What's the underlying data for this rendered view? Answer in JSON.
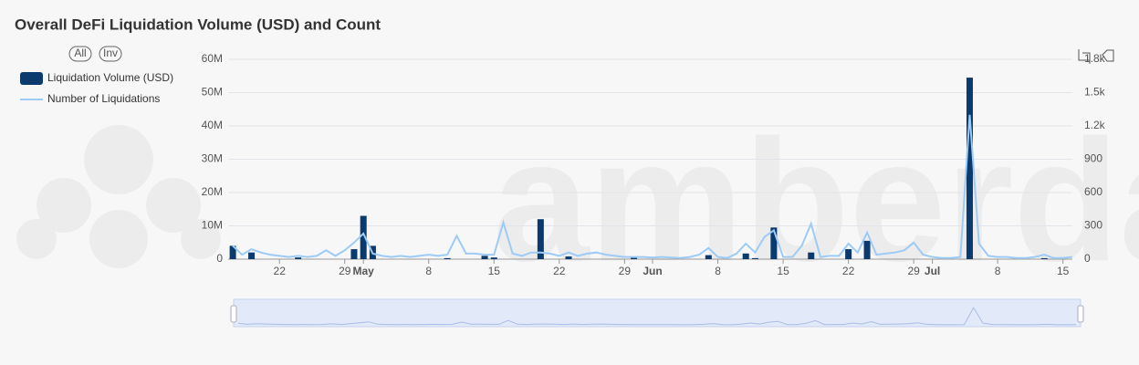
{
  "chart_data": {
    "type": "bar-line",
    "title": "Overall DeFi Liquidation Volume (USD) and Count",
    "watermark": "amberdata",
    "buttons": [
      "All",
      "Inv"
    ],
    "categories": [
      null,
      null,
      null,
      null,
      null,
      "22",
      null,
      null,
      null,
      null,
      null,
      null,
      "29",
      null,
      "May",
      null,
      null,
      null,
      null,
      null,
      null,
      "8",
      null,
      null,
      null,
      null,
      null,
      null,
      "15",
      null,
      null,
      null,
      null,
      null,
      null,
      "22",
      null,
      null,
      null,
      null,
      null,
      null,
      "29",
      null,
      null,
      "Jun",
      null,
      null,
      null,
      null,
      null,
      null,
      "8",
      null,
      null,
      null,
      null,
      null,
      null,
      "15",
      null,
      null,
      null,
      null,
      null,
      null,
      "22",
      null,
      null,
      null,
      null,
      null,
      null,
      "29",
      null,
      "Jul",
      null,
      null,
      null,
      null,
      null,
      null,
      "8",
      null,
      null,
      null,
      null,
      null,
      null,
      "15",
      null
    ],
    "series": [
      {
        "name": "Liquidation Volume (USD)",
        "color": "#0b3a6e",
        "kind": "bar",
        "values": [
          4000000,
          0,
          2000000,
          0,
          0,
          0,
          0,
          500000,
          0,
          0,
          0,
          0,
          0,
          3000000,
          13000000,
          4000000,
          0,
          0,
          0,
          0,
          0,
          0,
          0,
          300000,
          0,
          0,
          0,
          1000000,
          500000,
          0,
          0,
          0,
          0,
          12000000,
          0,
          0,
          800000,
          0,
          0,
          0,
          0,
          0,
          0,
          500000,
          0,
          0,
          0,
          0,
          0,
          0,
          0,
          1200000,
          0,
          0,
          0,
          1700000,
          300000,
          0,
          9500000,
          0,
          0,
          0,
          2000000,
          0,
          0,
          0,
          3000000,
          0,
          5500000,
          0,
          0,
          0,
          0,
          0,
          0,
          0,
          0,
          0,
          0,
          54500000,
          0,
          0,
          0,
          0,
          0,
          0,
          0,
          300000,
          0,
          0,
          0
        ]
      },
      {
        "name": "Number of Liquidations",
        "color": "#9ecbf5",
        "kind": "line",
        "axis": "y2",
        "values": [
          120,
          40,
          90,
          60,
          40,
          30,
          20,
          30,
          20,
          30,
          80,
          30,
          80,
          150,
          230,
          50,
          30,
          20,
          30,
          20,
          30,
          40,
          30,
          40,
          210,
          50,
          50,
          40,
          40,
          330,
          50,
          30,
          60,
          60,
          50,
          30,
          60,
          30,
          50,
          60,
          40,
          30,
          20,
          20,
          20,
          15,
          20,
          15,
          10,
          20,
          40,
          100,
          20,
          10,
          50,
          140,
          60,
          200,
          260,
          20,
          20,
          120,
          320,
          20,
          30,
          30,
          140,
          60,
          240,
          40,
          50,
          60,
          80,
          150,
          40,
          20,
          10,
          10,
          20,
          1300,
          140,
          30,
          20,
          20,
          10,
          10,
          20,
          40,
          10,
          10,
          20
        ]
      }
    ],
    "ylim": [
      0,
      60000000
    ],
    "yticks": [
      0,
      {
        "value": 10000000,
        "label": "10M"
      },
      {
        "value": 20000000,
        "label": "20M"
      },
      {
        "value": 30000000,
        "label": "30M"
      },
      {
        "value": 40000000,
        "label": "40M"
      },
      {
        "value": 50000000,
        "label": "50M"
      },
      {
        "value": 60000000,
        "label": "60M"
      }
    ],
    "y2lim": [
      0,
      1800
    ],
    "y2ticks": [
      0,
      300,
      600,
      900,
      {
        "value": 1200,
        "label": "1.2k"
      },
      {
        "value": 1500,
        "label": "1.5k"
      },
      {
        "value": 1800,
        "label": "1.8k"
      }
    ],
    "grid": true,
    "legend": "top-left"
  }
}
